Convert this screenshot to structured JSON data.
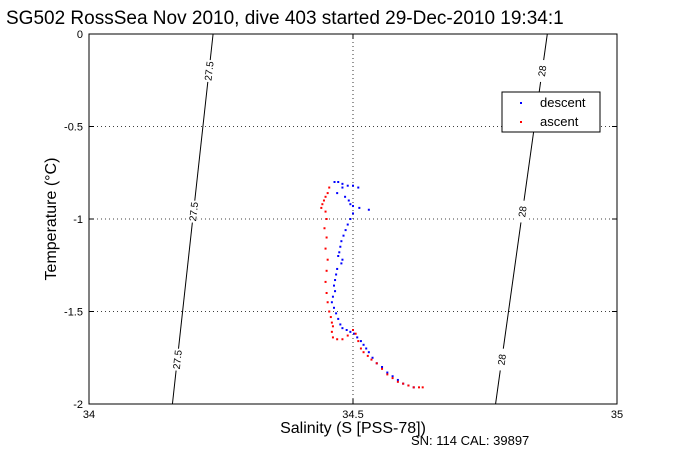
{
  "chart_data": {
    "type": "scatter",
    "title": "SG502 RossSea Nov 2010, dive 403 started 29-Dec-2010 19:34:1",
    "xlabel": "Salinity (S [PSS-78])",
    "ylabel": "Temperature (°C)",
    "xlim": [
      34,
      35
    ],
    "ylim": [
      -2,
      0
    ],
    "x_ticks": [
      "34",
      "34.5",
      "35"
    ],
    "y_ticks": [
      "0",
      "-0.5",
      "-1",
      "-1.5",
      "-2"
    ],
    "grid": true,
    "legend": "top-right",
    "footer": "SN: 114  CAL: 39897",
    "isopycnals": [
      {
        "label": "27.5",
        "points": [
          [
            34.235,
            0
          ],
          [
            34.158,
            -2
          ]
        ]
      },
      {
        "label": "28",
        "points": [
          [
            34.868,
            0
          ],
          [
            34.77,
            -2
          ]
        ]
      }
    ],
    "series": [
      {
        "name": "descent",
        "color": "#0000ff",
        "points": [
          [
            34.465,
            -0.8
          ],
          [
            34.472,
            -0.8
          ],
          [
            34.48,
            -0.81
          ],
          [
            34.49,
            -0.82
          ],
          [
            34.5,
            -0.82
          ],
          [
            34.51,
            -0.83
          ],
          [
            34.48,
            -0.83
          ],
          [
            34.47,
            -0.86
          ],
          [
            34.485,
            -0.88
          ],
          [
            34.492,
            -0.9
          ],
          [
            34.495,
            -0.92
          ],
          [
            34.5,
            -0.93
          ],
          [
            34.512,
            -0.94
          ],
          [
            34.53,
            -0.95
          ],
          [
            34.5,
            -0.97
          ],
          [
            34.495,
            -1.0
          ],
          [
            34.49,
            -1.03
          ],
          [
            34.486,
            -1.06
          ],
          [
            34.482,
            -1.09
          ],
          [
            34.478,
            -1.12
          ],
          [
            34.476,
            -1.15
          ],
          [
            34.474,
            -1.18
          ],
          [
            34.472,
            -1.2
          ],
          [
            34.48,
            -1.22
          ],
          [
            34.478,
            -1.24
          ],
          [
            34.47,
            -1.27
          ],
          [
            34.468,
            -1.3
          ],
          [
            34.466,
            -1.33
          ],
          [
            34.464,
            -1.36
          ],
          [
            34.466,
            -1.39
          ],
          [
            34.462,
            -1.42
          ],
          [
            34.46,
            -1.45
          ],
          [
            34.464,
            -1.48
          ],
          [
            34.468,
            -1.51
          ],
          [
            34.472,
            -1.54
          ],
          [
            34.476,
            -1.57
          ],
          [
            34.48,
            -1.59
          ],
          [
            34.488,
            -1.6
          ],
          [
            34.495,
            -1.61
          ],
          [
            34.502,
            -1.62
          ],
          [
            34.508,
            -1.64
          ],
          [
            34.515,
            -1.66
          ],
          [
            34.52,
            -1.68
          ],
          [
            34.525,
            -1.7
          ],
          [
            34.53,
            -1.72
          ],
          [
            34.537,
            -1.75
          ],
          [
            34.545,
            -1.78
          ],
          [
            34.555,
            -1.8
          ],
          [
            34.565,
            -1.83
          ],
          [
            34.575,
            -1.85
          ],
          [
            34.585,
            -1.87
          ],
          [
            34.595,
            -1.89
          ],
          [
            34.605,
            -1.9
          ],
          [
            34.615,
            -1.91
          ]
        ]
      },
      {
        "name": "ascent",
        "color": "#ff0000",
        "points": [
          [
            34.455,
            -0.83
          ],
          [
            34.452,
            -0.86
          ],
          [
            34.448,
            -0.88
          ],
          [
            34.445,
            -0.9
          ],
          [
            34.442,
            -0.92
          ],
          [
            34.44,
            -0.94
          ],
          [
            34.448,
            -0.96
          ],
          [
            34.45,
            -1.0
          ],
          [
            34.446,
            -1.05
          ],
          [
            34.45,
            -1.1
          ],
          [
            34.448,
            -1.16
          ],
          [
            34.452,
            -1.22
          ],
          [
            34.45,
            -1.28
          ],
          [
            34.448,
            -1.34
          ],
          [
            34.45,
            -1.4
          ],
          [
            34.452,
            -1.45
          ],
          [
            34.455,
            -1.5
          ],
          [
            34.458,
            -1.53
          ],
          [
            34.46,
            -1.56
          ],
          [
            34.462,
            -1.58
          ],
          [
            34.46,
            -1.61
          ],
          [
            34.462,
            -1.64
          ],
          [
            34.47,
            -1.65
          ],
          [
            34.48,
            -1.65
          ],
          [
            34.49,
            -1.63
          ],
          [
            34.5,
            -1.6
          ],
          [
            34.505,
            -1.62
          ],
          [
            34.51,
            -1.66
          ],
          [
            34.515,
            -1.7
          ],
          [
            34.52,
            -1.72
          ],
          [
            34.528,
            -1.74
          ],
          [
            34.535,
            -1.76
          ],
          [
            34.545,
            -1.78
          ],
          [
            34.555,
            -1.81
          ],
          [
            34.565,
            -1.84
          ],
          [
            34.575,
            -1.86
          ],
          [
            34.585,
            -1.88
          ],
          [
            34.595,
            -1.89
          ],
          [
            34.605,
            -1.9
          ],
          [
            34.615,
            -1.91
          ],
          [
            34.625,
            -1.91
          ],
          [
            34.632,
            -1.91
          ]
        ]
      }
    ]
  }
}
